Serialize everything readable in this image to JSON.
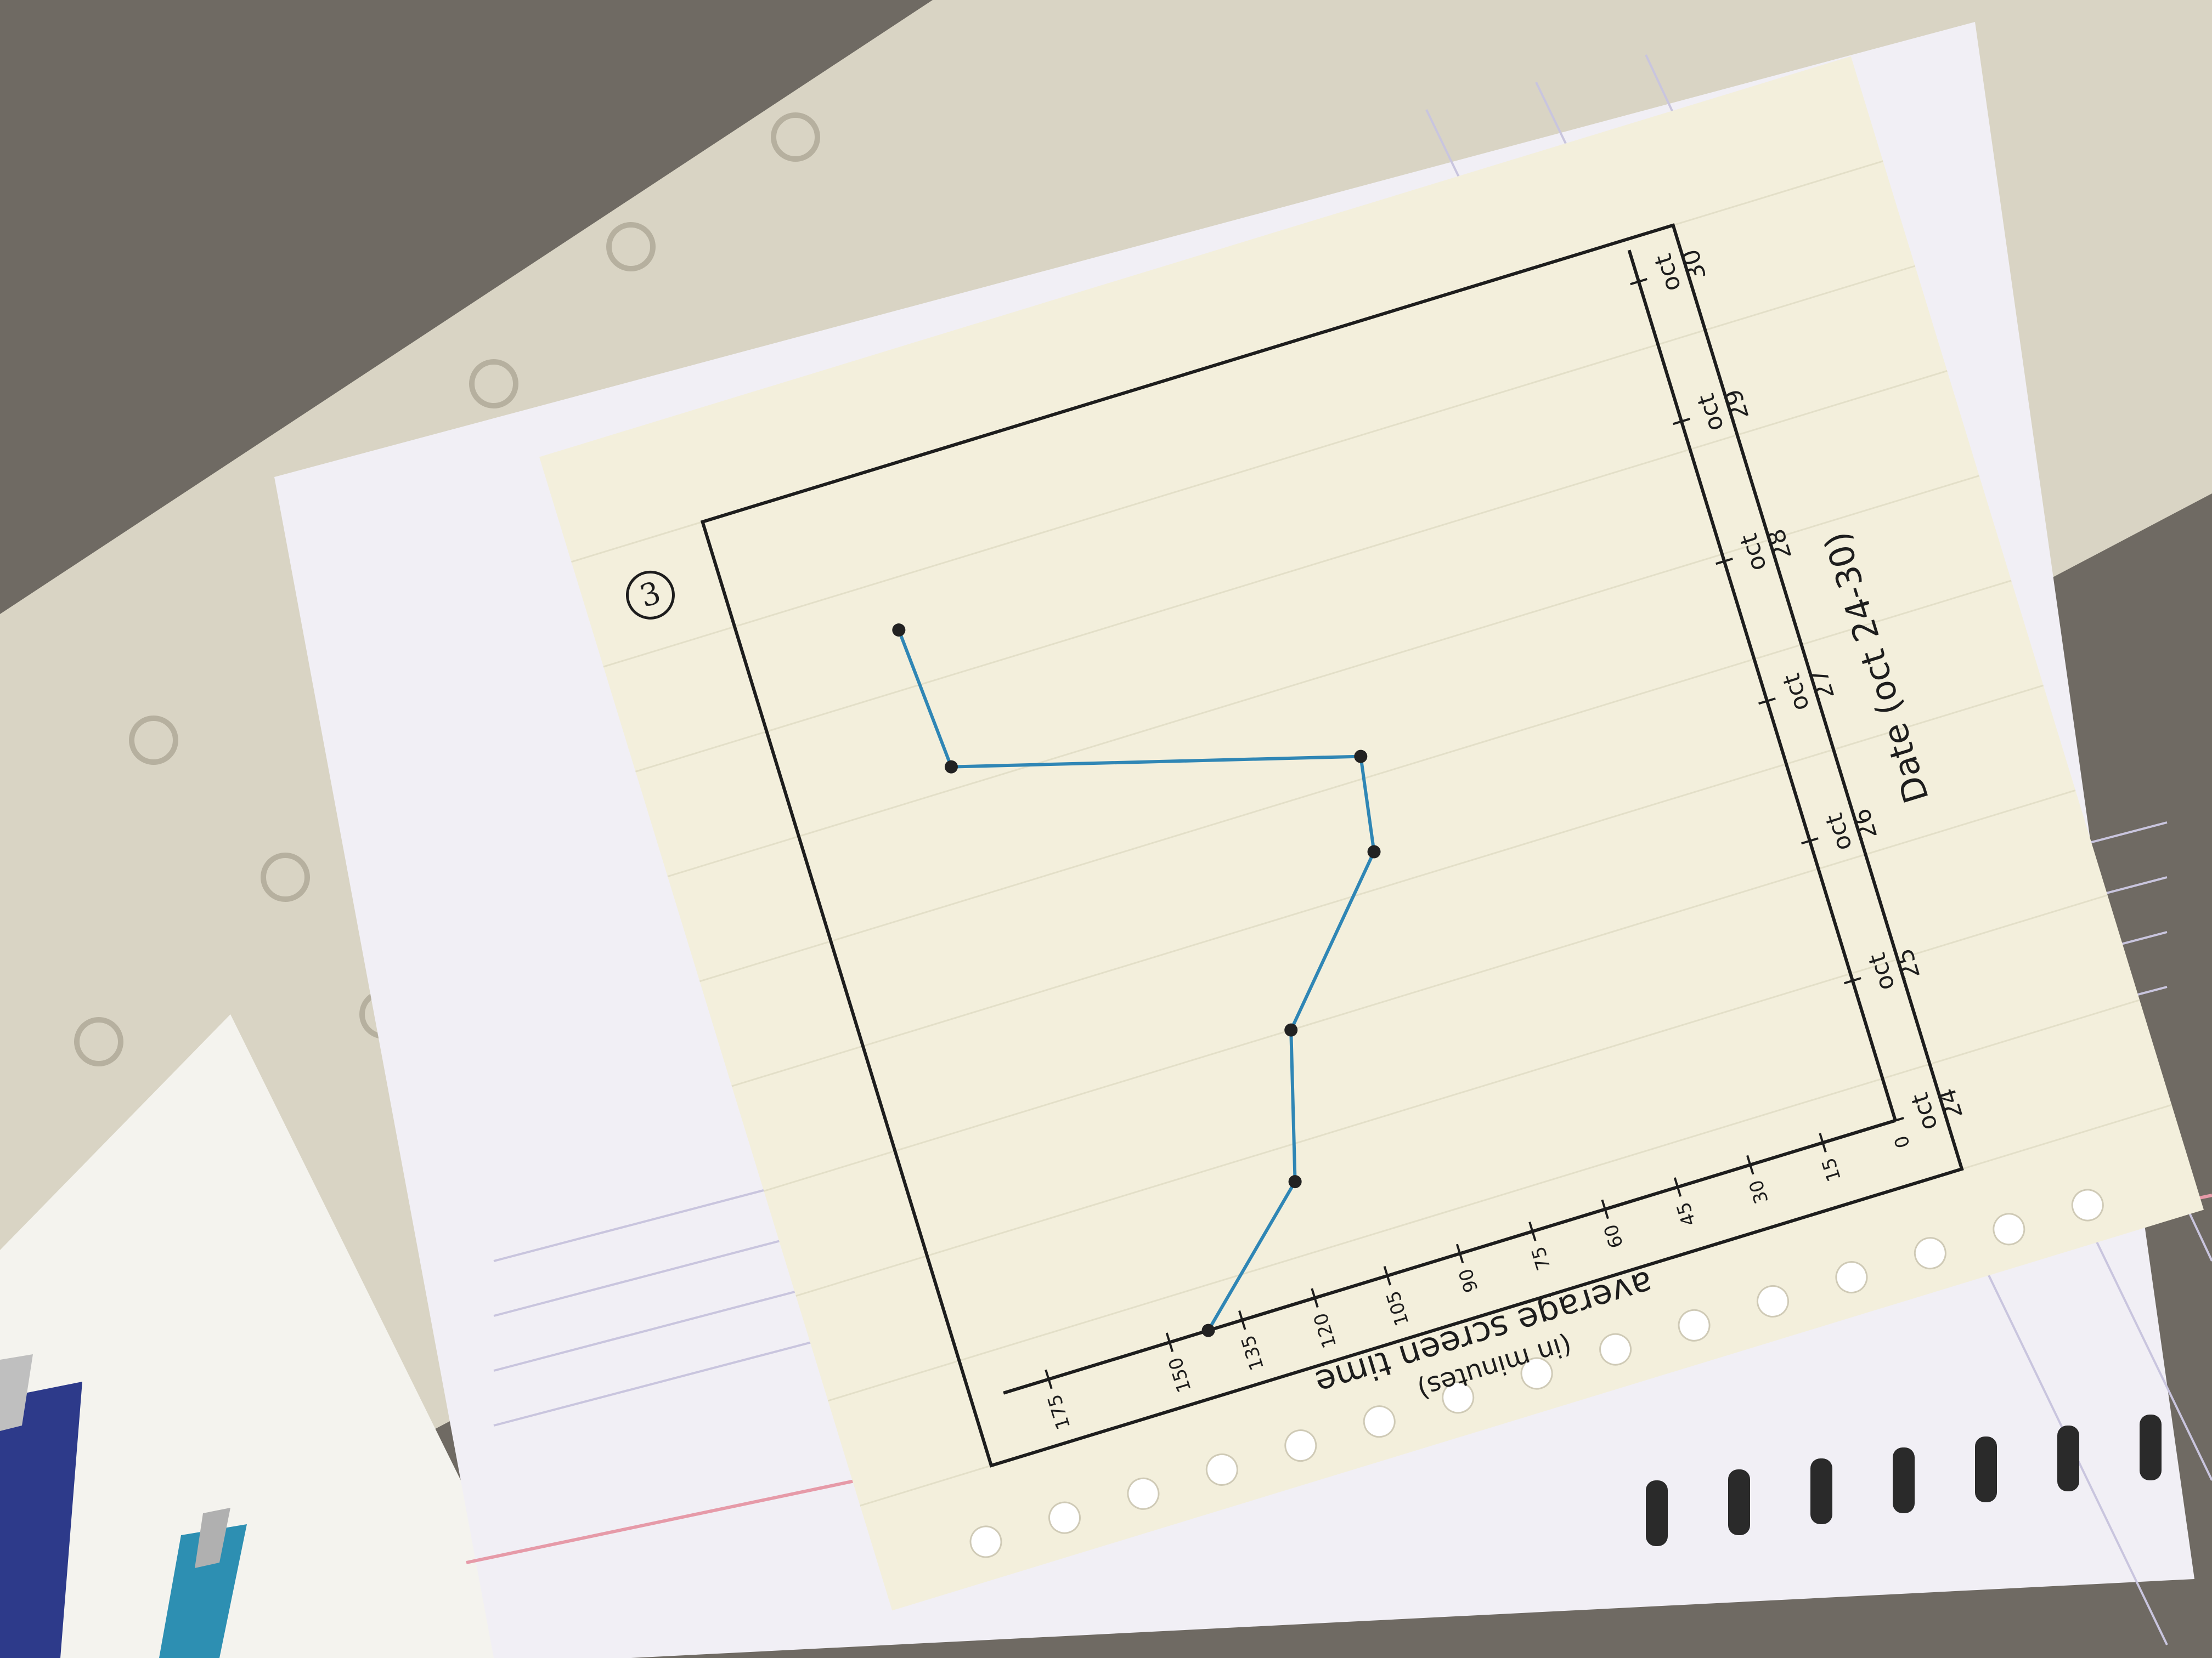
{
  "page": {
    "number_label": "3"
  },
  "colors": {
    "line": "#2f86b5",
    "point": "#222222",
    "ink": "#1d1d1d",
    "paper": "#f3efdc",
    "notebook": "#f1eff5"
  },
  "chart_data": {
    "type": "line",
    "title": "",
    "xlabel": "Date (oct 24-30)",
    "ylabel": "average screen time",
    "ylabel_sub": "(in minutes)",
    "y_ticks": [
      "0",
      "15",
      "30",
      "45",
      "60",
      "75",
      "90",
      "105",
      "120",
      "135",
      "150",
      "175"
    ],
    "y_tick_values": [
      0,
      15,
      30,
      45,
      60,
      75,
      90,
      105,
      120,
      135,
      150,
      175
    ],
    "x_ticks": [
      {
        "top": "oct",
        "bottom": "24"
      },
      {
        "top": "oct",
        "bottom": "25"
      },
      {
        "top": "oct",
        "bottom": "26"
      },
      {
        "top": "oct",
        "bottom": "27"
      },
      {
        "top": "oct",
        "bottom": "28"
      },
      {
        "top": "oct",
        "bottom": "29"
      },
      {
        "top": "oct",
        "bottom": "30"
      }
    ],
    "x": [
      "oct 24",
      "oct 24.8",
      "oct 25.8",
      "oct 26.8",
      "oct 27.5",
      "oct 28.2",
      "oct 29.2"
    ],
    "x_positions": [
      0.0,
      0.8,
      1.8,
      2.8,
      3.45,
      4.2,
      5.2
    ],
    "values": [
      142,
      117,
      109,
      83,
      80,
      158,
      160
    ],
    "grid": false,
    "legend": "none"
  }
}
